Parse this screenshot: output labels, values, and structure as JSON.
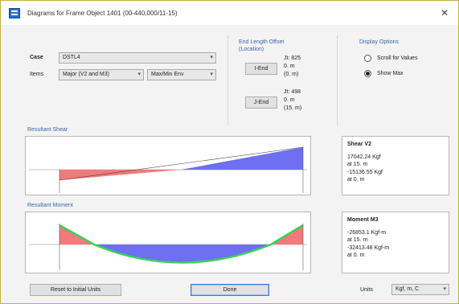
{
  "window": {
    "title": "Diagrams for Frame Object 1401 (00-440,000/11-15)",
    "close_glyph": "✕"
  },
  "case_label": "Case",
  "case_value": "DSTL4",
  "items_label": "Items",
  "items_value": "Major (V2 and M3)",
  "items_value2": "Max/Min Env",
  "end_offset": {
    "title_line1": "End Length Offset",
    "title_line2": "(Location)",
    "i_button": "I-End",
    "i_lines": [
      "Jt: 825",
      "0. m",
      "(0. m)"
    ],
    "j_button": "J-End",
    "j_lines": [
      "Jt: 498",
      "0. m",
      "(15. m)"
    ]
  },
  "display_options": {
    "title": "Display Options",
    "options": [
      {
        "label": "Scroll for Values",
        "selected": false
      },
      {
        "label": "Show Max",
        "selected": true
      }
    ]
  },
  "shear": {
    "section_label": "Resultant Shear",
    "info_title": "Shear V2",
    "info_lines": [
      "17042.24 Kgf",
      "at 15. m",
      "-15136.55 Kgf",
      "at 0. m"
    ]
  },
  "moment": {
    "section_label": "Resultant Moment",
    "info_title": "Moment M3",
    "info_lines": [
      "-26853.1 Kgf-m",
      "at 15. m",
      "-32413.48 Kgf-m",
      "at 0. m"
    ]
  },
  "footer": {
    "reset_button": "Reset to Initial Units",
    "done_button": "Done",
    "units_label": "Units",
    "units_value": "Kgf, m, C"
  },
  "colors": {
    "negative_fill": "#f27a7a",
    "positive_fill": "#6f6ff2",
    "envelope_green": "#3ccf5c",
    "section_header": "#3a66a8"
  }
}
